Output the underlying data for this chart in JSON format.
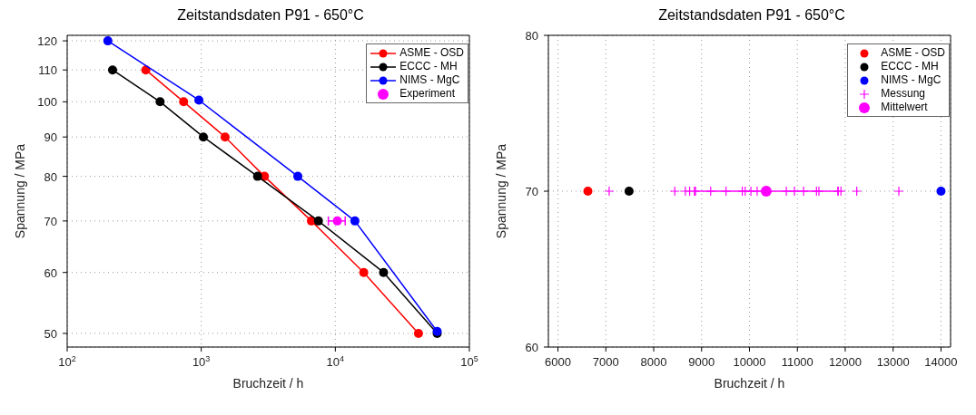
{
  "chart_data": [
    {
      "type": "line",
      "title": "Zeitstandsdaten P91 - 650°C",
      "xlabel": "Bruchzeit / h",
      "ylabel": "Spannung / MPa",
      "log": "xy",
      "grid": true,
      "legend": "top right",
      "marker": "circle",
      "xlim": [
        100,
        100000
      ],
      "xticks": [
        {
          "value": 100,
          "label": "10$^{2}$"
        },
        {
          "value": 1000,
          "label": "10$^{3}$"
        },
        {
          "value": 10000,
          "label": "10$^{4}$"
        },
        {
          "value": 100000,
          "label": "10$^{5}$"
        }
      ],
      "ylim": [
        48,
        122
      ],
      "yticks": [
        50,
        60,
        70,
        80,
        90,
        100,
        110,
        120
      ],
      "series": [
        {
          "name": "ASME - OSD",
          "color": "#ff0000",
          "x": [
            386,
            739,
            1506,
            2960,
            6630,
            16300,
            41700
          ],
          "values": [
            110,
            100,
            90,
            80,
            70,
            60,
            50
          ]
        },
        {
          "name": "ECCC - MH",
          "color": "#000000",
          "x": [
            218,
            493,
            1037,
            2630,
            7480,
            22900,
            57500
          ],
          "values": [
            110,
            100,
            90,
            80,
            70,
            60,
            50
          ]
        },
        {
          "name": "NIMS - MgC",
          "color": "#0000ff",
          "x": [
            201,
            960,
            5250,
            14000,
            57500
          ],
          "values": [
            120,
            100.5,
            80,
            70,
            50.3
          ]
        },
        {
          "name": "Experiment",
          "type": "scatter",
          "color": "#ff00ff",
          "x": [
            10350
          ],
          "values": [
            70
          ],
          "xerrors": [
            [
              8870,
              11850
            ]
          ]
        }
      ]
    },
    {
      "type": "scatter",
      "title": "Zeitstandsdaten P91 - 650°C",
      "xlabel": "Bruchzeit / h",
      "ylabel": "Spannung / MPa",
      "grid": true,
      "legend": "top right",
      "marker": "circle",
      "xlim": [
        5800,
        14200
      ],
      "xticks": [
        6000,
        7000,
        8000,
        9000,
        10000,
        11000,
        12000,
        13000,
        14000
      ],
      "ylim": [
        60,
        80
      ],
      "yticks": [
        60,
        70,
        80
      ],
      "series": [
        {
          "name": "ASME - OSD",
          "color": "#ff0000",
          "x": [
            6625
          ],
          "values": [
            70
          ]
        },
        {
          "name": "ECCC - MH",
          "color": "#000000",
          "x": [
            7485
          ],
          "values": [
            70
          ]
        },
        {
          "name": "NIMS - MgC",
          "color": "#0000ff",
          "x": [
            14000
          ],
          "values": [
            70
          ]
        },
        {
          "name": "Messung",
          "color": "#ff00ff",
          "marker": "cross",
          "x": [
            7070,
            8440,
            8660,
            8750,
            8850,
            9190,
            9510,
            9850,
            9910,
            10030,
            10160,
            10770,
            10940,
            11130,
            11400,
            11450,
            11850,
            11910,
            12240,
            13120
          ],
          "values": [
            70,
            70,
            70,
            70,
            70,
            70,
            70,
            70,
            70,
            70,
            70,
            70,
            70,
            70,
            70,
            70,
            70,
            70,
            70,
            70
          ]
        },
        {
          "name": "Mittelwert",
          "color": "#ff00ff",
          "x": [
            10350
          ],
          "values": [
            70
          ],
          "xerrors": [
            [
              8870,
              11850
            ]
          ]
        }
      ]
    }
  ]
}
